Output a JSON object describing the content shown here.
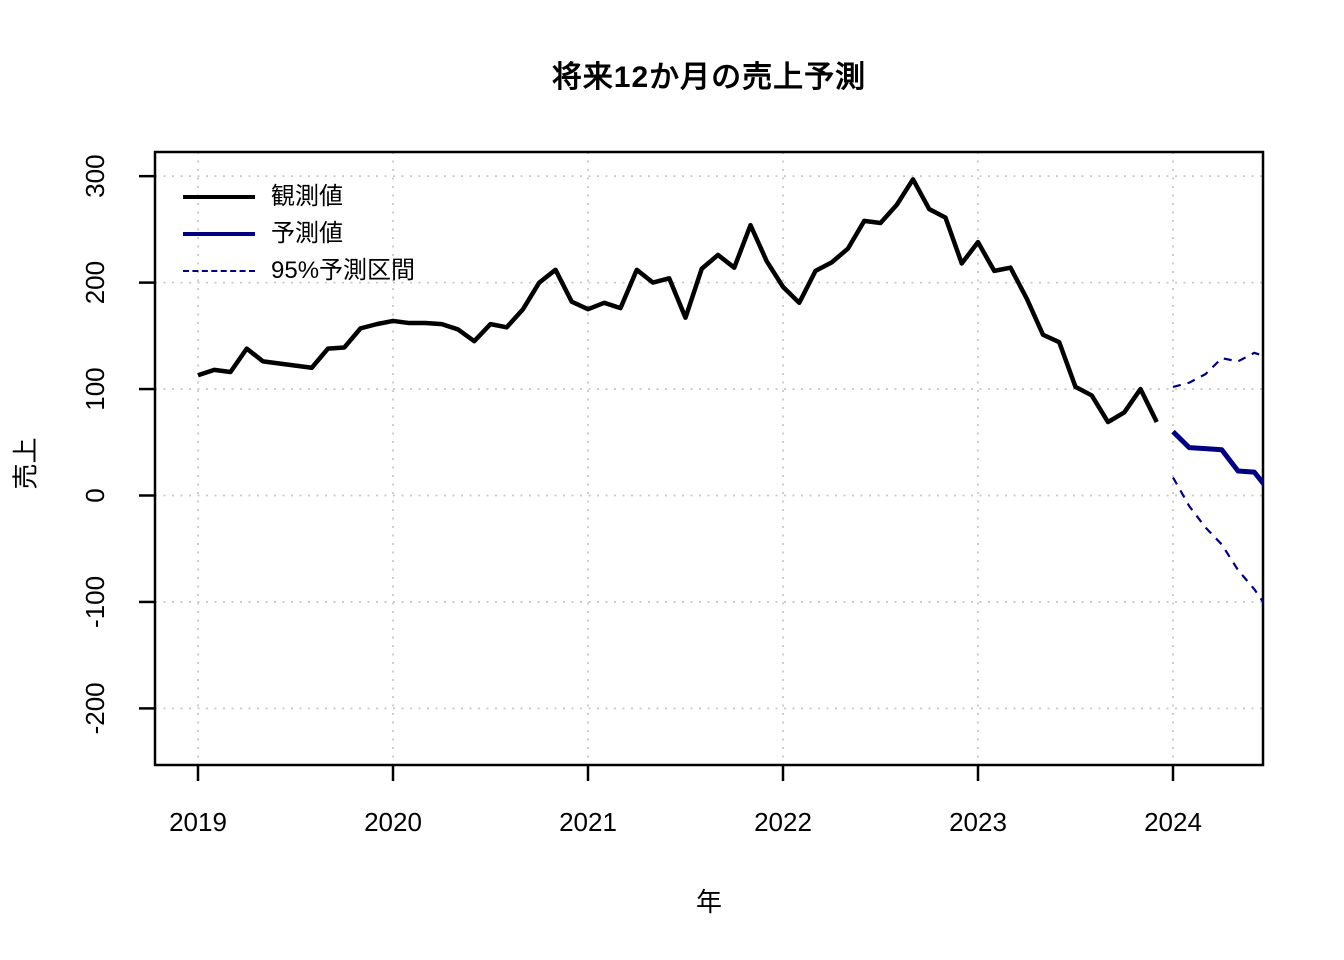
{
  "title": "将来12か月の売上予測",
  "colors": {
    "observed": "#000000",
    "forecast": "#000080",
    "interval": "#000080",
    "grid": "#c9c9c9",
    "background": "#ffffff"
  },
  "chart_data": {
    "type": "line",
    "title": "将来12か月の売上予測",
    "xlabel": "年",
    "ylabel": "売上",
    "grid": "dotted",
    "legend_position": "top-left",
    "x_axis": {
      "ticks": [
        2019,
        2020,
        2021,
        2022,
        2023,
        2024
      ],
      "range": [
        2018.78,
        2024.46
      ],
      "unit": "year, monthly time series"
    },
    "y_axis": {
      "ticks": [
        -200,
        -100,
        0,
        100,
        200,
        300
      ],
      "range": [
        -253,
        323
      ]
    },
    "series": [
      {
        "name": "観測値",
        "role": "observed",
        "color": "#000000",
        "style": "solid",
        "start": "2019-01",
        "frequency": "monthly",
        "values": [
          113,
          118,
          116,
          138,
          126,
          124,
          122,
          120,
          138,
          139,
          157,
          161,
          164,
          162,
          162,
          161,
          156,
          145,
          161,
          158,
          175,
          200,
          212,
          182,
          175,
          181,
          176,
          212,
          200,
          204,
          167,
          213,
          226,
          214,
          254,
          220,
          196,
          181,
          211,
          219,
          232,
          258,
          256,
          273,
          297,
          269,
          261,
          218,
          238,
          211,
          214,
          185,
          151,
          144,
          102,
          94,
          69,
          78,
          100,
          69
        ]
      },
      {
        "name": "予測値",
        "role": "forecast-mean",
        "color": "#000080",
        "style": "solid",
        "start": "2024-01",
        "frequency": "monthly",
        "values": [
          60,
          45,
          44,
          43,
          23,
          22,
          3
        ],
        "note": "forecast continues past the right plot edge and is clipped at x=2024.46"
      },
      {
        "name": "95%予測区間",
        "role": "prediction-interval",
        "color": "#000080",
        "style": "dashed",
        "start": "2024-01",
        "frequency": "monthly",
        "upper": [
          102,
          106,
          114,
          129,
          126,
          134,
          129
        ],
        "lower": [
          17,
          -10,
          -30,
          -46,
          -70,
          -88,
          -110
        ],
        "note": "dashed bounds, clipped at right plot edge"
      }
    ]
  }
}
